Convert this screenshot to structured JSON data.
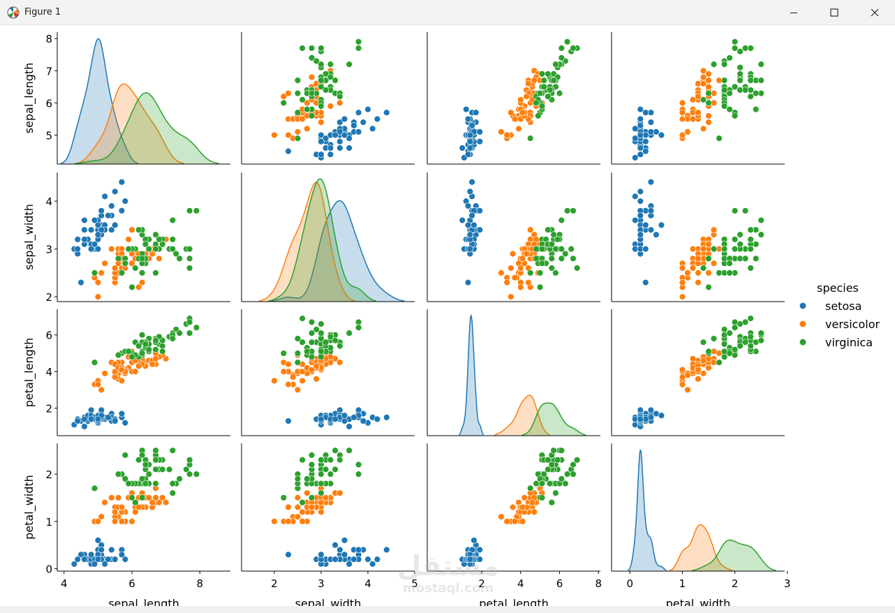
{
  "window": {
    "title": "Figure 1",
    "app_icon": "matplotlib-figure-icon",
    "buttons": [
      "minimize-icon",
      "maximize-icon",
      "close-icon"
    ]
  },
  "watermark": {
    "logo_text": "مستقل",
    "text": "mostaql.com"
  },
  "chart_data": {
    "type": "pairplot",
    "variables": [
      "sepal_length",
      "sepal_width",
      "petal_length",
      "petal_width"
    ],
    "diagonal": "kde",
    "offdiagonal": "scatter",
    "hue_title": "species",
    "legend_placement": "right",
    "series": [
      {
        "name": "setosa",
        "color": "#1f77b4",
        "mean": [
          5.006,
          3.428,
          1.462,
          0.246
        ],
        "sd": [
          0.35,
          0.38,
          0.17,
          0.105
        ]
      },
      {
        "name": "versicolor",
        "color": "#ff7f0e",
        "mean": [
          5.936,
          2.77,
          4.26,
          1.326
        ],
        "sd": [
          0.52,
          0.31,
          0.47,
          0.2
        ]
      },
      {
        "name": "virginica",
        "color": "#2ca02c",
        "mean": [
          6.588,
          2.974,
          5.552,
          2.026
        ],
        "sd": [
          0.64,
          0.32,
          0.55,
          0.27
        ]
      }
    ],
    "axes": {
      "sepal_length": {
        "lim": [
          3.8,
          8.9
        ],
        "ylim": [
          4.1,
          8.2
        ],
        "ticks": [
          4,
          6,
          8
        ],
        "yticks": [
          5,
          6,
          7,
          8
        ]
      },
      "sepal_width": {
        "lim": [
          1.3,
          5.0
        ],
        "ylim": [
          1.9,
          4.6
        ],
        "ticks": [
          2,
          3,
          4,
          5
        ],
        "yticks": [
          2,
          3,
          4
        ]
      },
      "petal_length": {
        "lim": [
          -0.8,
          8.1
        ],
        "ylim": [
          0.5,
          7.4
        ],
        "ticks": [
          2,
          4,
          6,
          8
        ],
        "yticks": [
          2,
          4,
          6
        ]
      },
      "petal_width": {
        "lim": [
          -0.35,
          2.95
        ],
        "ylim": [
          -0.05,
          2.65
        ],
        "ticks": [
          0,
          1,
          2,
          3
        ],
        "yticks": [
          0,
          1,
          2
        ]
      }
    },
    "points": {
      "setosa": [
        [
          5.1,
          3.5,
          1.4,
          0.2
        ],
        [
          4.9,
          3.0,
          1.4,
          0.2
        ],
        [
          4.7,
          3.2,
          1.3,
          0.2
        ],
        [
          4.6,
          3.1,
          1.5,
          0.2
        ],
        [
          5.0,
          3.6,
          1.4,
          0.2
        ],
        [
          5.4,
          3.9,
          1.7,
          0.4
        ],
        [
          4.6,
          3.4,
          1.4,
          0.3
        ],
        [
          5.0,
          3.4,
          1.5,
          0.2
        ],
        [
          4.4,
          2.9,
          1.4,
          0.2
        ],
        [
          4.9,
          3.1,
          1.5,
          0.1
        ],
        [
          5.4,
          3.7,
          1.5,
          0.2
        ],
        [
          4.8,
          3.4,
          1.6,
          0.2
        ],
        [
          4.8,
          3.0,
          1.4,
          0.1
        ],
        [
          4.3,
          3.0,
          1.1,
          0.1
        ],
        [
          5.8,
          4.0,
          1.2,
          0.2
        ],
        [
          5.7,
          4.4,
          1.5,
          0.4
        ],
        [
          5.4,
          3.9,
          1.3,
          0.4
        ],
        [
          5.1,
          3.5,
          1.4,
          0.3
        ],
        [
          5.7,
          3.8,
          1.7,
          0.3
        ],
        [
          5.1,
          3.8,
          1.5,
          0.3
        ],
        [
          5.4,
          3.4,
          1.7,
          0.2
        ],
        [
          5.1,
          3.7,
          1.5,
          0.4
        ],
        [
          4.6,
          3.6,
          1.0,
          0.2
        ],
        [
          5.1,
          3.3,
          1.7,
          0.5
        ],
        [
          4.8,
          3.4,
          1.9,
          0.2
        ],
        [
          5.0,
          3.0,
          1.6,
          0.2
        ],
        [
          5.0,
          3.4,
          1.6,
          0.4
        ],
        [
          5.2,
          3.5,
          1.5,
          0.2
        ],
        [
          5.2,
          3.4,
          1.4,
          0.2
        ],
        [
          4.7,
          3.2,
          1.6,
          0.2
        ],
        [
          4.8,
          3.1,
          1.6,
          0.2
        ],
        [
          5.4,
          3.4,
          1.5,
          0.4
        ],
        [
          5.2,
          4.1,
          1.5,
          0.1
        ],
        [
          5.5,
          4.2,
          1.4,
          0.2
        ],
        [
          4.9,
          3.1,
          1.5,
          0.2
        ],
        [
          5.0,
          3.2,
          1.2,
          0.2
        ],
        [
          5.5,
          3.5,
          1.3,
          0.2
        ],
        [
          4.9,
          3.6,
          1.4,
          0.1
        ],
        [
          4.4,
          3.0,
          1.3,
          0.2
        ],
        [
          5.1,
          3.4,
          1.5,
          0.2
        ],
        [
          5.0,
          3.5,
          1.3,
          0.3
        ],
        [
          4.5,
          2.3,
          1.3,
          0.3
        ],
        [
          4.4,
          3.2,
          1.3,
          0.2
        ],
        [
          5.0,
          3.5,
          1.6,
          0.6
        ],
        [
          5.1,
          3.8,
          1.9,
          0.4
        ],
        [
          4.8,
          3.0,
          1.4,
          0.3
        ],
        [
          5.1,
          3.8,
          1.6,
          0.2
        ],
        [
          4.6,
          3.2,
          1.4,
          0.2
        ],
        [
          5.3,
          3.7,
          1.5,
          0.2
        ],
        [
          5.0,
          3.3,
          1.4,
          0.2
        ]
      ],
      "versicolor": [
        [
          7.0,
          3.2,
          4.7,
          1.4
        ],
        [
          6.4,
          3.2,
          4.5,
          1.5
        ],
        [
          6.9,
          3.1,
          4.9,
          1.5
        ],
        [
          5.5,
          2.3,
          4.0,
          1.3
        ],
        [
          6.5,
          2.8,
          4.6,
          1.5
        ],
        [
          5.7,
          2.8,
          4.5,
          1.3
        ],
        [
          6.3,
          3.3,
          4.7,
          1.6
        ],
        [
          4.9,
          2.4,
          3.3,
          1.0
        ],
        [
          6.6,
          2.9,
          4.6,
          1.3
        ],
        [
          5.2,
          2.7,
          3.9,
          1.4
        ],
        [
          5.0,
          2.0,
          3.5,
          1.0
        ],
        [
          5.9,
          3.0,
          4.2,
          1.5
        ],
        [
          6.0,
          2.2,
          4.0,
          1.0
        ],
        [
          6.1,
          2.9,
          4.7,
          1.4
        ],
        [
          5.6,
          2.9,
          3.6,
          1.3
        ],
        [
          6.7,
          3.1,
          4.4,
          1.4
        ],
        [
          5.6,
          3.0,
          4.5,
          1.5
        ],
        [
          5.8,
          2.7,
          4.1,
          1.0
        ],
        [
          6.2,
          2.2,
          4.5,
          1.5
        ],
        [
          5.6,
          2.5,
          3.9,
          1.1
        ],
        [
          5.9,
          3.2,
          4.8,
          1.8
        ],
        [
          6.1,
          2.8,
          4.0,
          1.3
        ],
        [
          6.3,
          2.5,
          4.9,
          1.5
        ],
        [
          6.1,
          2.8,
          4.7,
          1.2
        ],
        [
          6.4,
          2.9,
          4.3,
          1.3
        ],
        [
          6.6,
          3.0,
          4.4,
          1.4
        ],
        [
          6.8,
          2.8,
          4.8,
          1.4
        ],
        [
          6.7,
          3.0,
          5.0,
          1.7
        ],
        [
          6.0,
          2.9,
          4.5,
          1.5
        ],
        [
          5.7,
          2.6,
          3.5,
          1.0
        ],
        [
          5.5,
          2.4,
          3.8,
          1.1
        ],
        [
          5.5,
          2.4,
          3.7,
          1.0
        ],
        [
          5.8,
          2.7,
          3.9,
          1.2
        ],
        [
          6.0,
          2.7,
          5.1,
          1.6
        ],
        [
          5.4,
          3.0,
          4.5,
          1.5
        ],
        [
          6.0,
          3.4,
          4.5,
          1.6
        ],
        [
          6.7,
          3.1,
          4.7,
          1.5
        ],
        [
          6.3,
          2.3,
          4.4,
          1.3
        ],
        [
          5.6,
          3.0,
          4.1,
          1.3
        ],
        [
          5.5,
          2.5,
          4.0,
          1.3
        ],
        [
          5.5,
          2.6,
          4.4,
          1.2
        ],
        [
          6.1,
          3.0,
          4.6,
          1.4
        ],
        [
          5.8,
          2.6,
          4.0,
          1.2
        ],
        [
          5.0,
          2.3,
          3.3,
          1.0
        ],
        [
          5.6,
          2.7,
          4.2,
          1.3
        ],
        [
          5.7,
          3.0,
          4.2,
          1.2
        ],
        [
          5.7,
          2.9,
          4.2,
          1.3
        ],
        [
          6.2,
          2.9,
          4.3,
          1.3
        ],
        [
          5.1,
          2.5,
          3.0,
          1.1
        ],
        [
          5.7,
          2.8,
          4.1,
          1.3
        ]
      ],
      "virginica": [
        [
          6.3,
          3.3,
          6.0,
          2.5
        ],
        [
          5.8,
          2.7,
          5.1,
          1.9
        ],
        [
          7.1,
          3.0,
          5.9,
          2.1
        ],
        [
          6.3,
          2.9,
          5.6,
          1.8
        ],
        [
          6.5,
          3.0,
          5.8,
          2.2
        ],
        [
          7.6,
          3.0,
          6.6,
          2.1
        ],
        [
          4.9,
          2.5,
          4.5,
          1.7
        ],
        [
          7.3,
          2.9,
          6.3,
          1.8
        ],
        [
          6.7,
          2.5,
          5.8,
          1.8
        ],
        [
          7.2,
          3.6,
          6.1,
          2.5
        ],
        [
          6.5,
          3.2,
          5.1,
          2.0
        ],
        [
          6.4,
          2.7,
          5.3,
          1.9
        ],
        [
          6.8,
          3.0,
          5.5,
          2.1
        ],
        [
          5.7,
          2.5,
          5.0,
          2.0
        ],
        [
          5.8,
          2.8,
          5.1,
          2.4
        ],
        [
          6.4,
          3.2,
          5.3,
          2.3
        ],
        [
          6.5,
          3.0,
          5.5,
          1.8
        ],
        [
          7.7,
          3.8,
          6.7,
          2.2
        ],
        [
          7.7,
          2.6,
          6.9,
          2.3
        ],
        [
          6.0,
          2.2,
          5.0,
          1.5
        ],
        [
          6.9,
          3.2,
          5.7,
          2.3
        ],
        [
          5.6,
          2.8,
          4.9,
          2.0
        ],
        [
          7.7,
          2.8,
          6.7,
          2.0
        ],
        [
          6.3,
          2.7,
          4.9,
          1.8
        ],
        [
          6.7,
          3.3,
          5.7,
          2.1
        ],
        [
          7.2,
          3.2,
          6.0,
          1.8
        ],
        [
          6.2,
          2.8,
          4.8,
          1.8
        ],
        [
          6.1,
          3.0,
          4.9,
          1.8
        ],
        [
          6.4,
          2.8,
          5.6,
          2.1
        ],
        [
          7.2,
          3.0,
          5.8,
          1.6
        ],
        [
          7.4,
          2.8,
          6.1,
          1.9
        ],
        [
          7.9,
          3.8,
          6.4,
          2.0
        ],
        [
          6.4,
          2.8,
          5.6,
          2.2
        ],
        [
          6.3,
          2.8,
          5.1,
          1.5
        ],
        [
          6.1,
          2.6,
          5.6,
          1.4
        ],
        [
          7.7,
          3.0,
          6.1,
          2.3
        ],
        [
          6.3,
          3.4,
          5.6,
          2.4
        ],
        [
          6.4,
          3.1,
          5.5,
          1.8
        ],
        [
          6.0,
          3.0,
          4.8,
          1.8
        ],
        [
          6.9,
          3.1,
          5.4,
          2.1
        ],
        [
          6.7,
          3.1,
          5.6,
          2.4
        ],
        [
          6.9,
          3.1,
          5.1,
          2.3
        ],
        [
          5.8,
          2.7,
          5.1,
          1.9
        ],
        [
          6.8,
          3.2,
          5.9,
          2.3
        ],
        [
          6.7,
          3.3,
          5.7,
          2.5
        ],
        [
          6.7,
          3.0,
          5.2,
          2.3
        ],
        [
          6.3,
          2.5,
          5.0,
          1.9
        ],
        [
          6.5,
          3.0,
          5.2,
          2.0
        ],
        [
          6.2,
          3.4,
          5.4,
          2.3
        ],
        [
          5.9,
          3.0,
          5.1,
          1.8
        ]
      ]
    }
  }
}
